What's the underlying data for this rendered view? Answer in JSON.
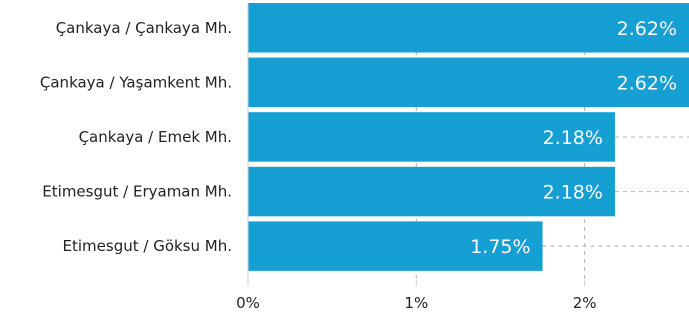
{
  "chart_data": {
    "type": "bar",
    "orientation": "horizontal",
    "categories": [
      "Çankaya / Çankaya Mh.",
      "Çankaya / Yaşamkent Mh.",
      "Çankaya / Emek Mh.",
      "Etimesgut / Eryaman Mh.",
      "Etimesgut / Göksu Mh."
    ],
    "values": [
      2.62,
      2.62,
      2.18,
      2.18,
      1.75
    ],
    "value_labels": [
      "2.62%",
      "2.62%",
      "2.18%",
      "2.18%",
      "1.75%"
    ],
    "x_ticks": [
      0,
      1,
      2
    ],
    "x_tick_labels": [
      "0%",
      "1%",
      "2%"
    ],
    "xlim": [
      0,
      2.62
    ],
    "grid": true,
    "colors": {
      "bar": "#159fd3",
      "grid": "#bdbdbd",
      "axis": "#cfcfcf"
    }
  }
}
